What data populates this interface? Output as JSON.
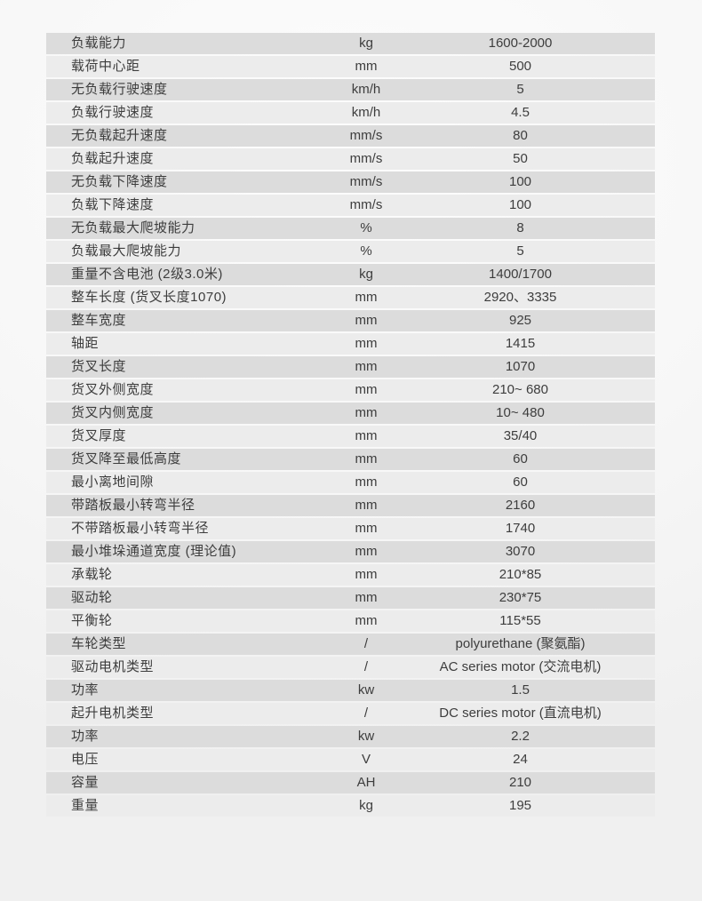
{
  "colors": {
    "row_odd": "#dcdcdc",
    "row_even": "#ececec",
    "text": "#3d3d3d",
    "page_background": "#f5f5f5"
  },
  "table": {
    "rows": [
      {
        "label": "负载能力",
        "unit": "kg",
        "value": "1600-2000"
      },
      {
        "label": "载荷中心距",
        "unit": "mm",
        "value": "500"
      },
      {
        "label": "无负载行驶速度",
        "unit": "km/h",
        "value": "5"
      },
      {
        "label": "负载行驶速度",
        "unit": "km/h",
        "value": "4.5"
      },
      {
        "label": "无负载起升速度",
        "unit": "mm/s",
        "value": "80"
      },
      {
        "label": "负载起升速度",
        "unit": "mm/s",
        "value": "50"
      },
      {
        "label": "无负载下降速度",
        "unit": "mm/s",
        "value": "100"
      },
      {
        "label": "负载下降速度",
        "unit": "mm/s",
        "value": "100"
      },
      {
        "label": "无负载最大爬坡能力",
        "unit": "%",
        "value": "8"
      },
      {
        "label": "负载最大爬坡能力",
        "unit": "%",
        "value": "5"
      },
      {
        "label": "重量不含电池 (2级3.0米)",
        "unit": "kg",
        "value": "1400/1700"
      },
      {
        "label": "整车长度 (货叉长度1070)",
        "unit": "mm",
        "value": "2920、3335"
      },
      {
        "label": "整车宽度",
        "unit": "mm",
        "value": "925"
      },
      {
        "label": "轴距",
        "unit": "mm",
        "value": "1415"
      },
      {
        "label": "货叉长度",
        "unit": "mm",
        "value": "1070"
      },
      {
        "label": "货叉外侧宽度",
        "unit": "mm",
        "value": "210~ 680"
      },
      {
        "label": "货叉内侧宽度",
        "unit": "mm",
        "value": "10~ 480"
      },
      {
        "label": "货叉厚度",
        "unit": "mm",
        "value": "35/40"
      },
      {
        "label": "货叉降至最低高度",
        "unit": "mm",
        "value": "60"
      },
      {
        "label": "最小离地间隙",
        "unit": "mm",
        "value": "60"
      },
      {
        "label": "带踏板最小转弯半径",
        "unit": "mm",
        "value": "2160"
      },
      {
        "label": "不带踏板最小转弯半径",
        "unit": "mm",
        "value": "1740"
      },
      {
        "label": "最小堆垛通道宽度 (理论值)",
        "unit": "mm",
        "value": "3070"
      },
      {
        "label": "承载轮",
        "unit": "mm",
        "value": "210*85"
      },
      {
        "label": "驱动轮",
        "unit": "mm",
        "value": "230*75"
      },
      {
        "label": "平衡轮",
        "unit": "mm",
        "value": "115*55"
      },
      {
        "label": "车轮类型",
        "unit": "/",
        "value": "polyurethane (聚氨酯)"
      },
      {
        "label": "驱动电机类型",
        "unit": "/",
        "value": "AC series motor (交流电机)"
      },
      {
        "label": "功率",
        "unit": "kw",
        "value": "1.5"
      },
      {
        "label": "起升电机类型",
        "unit": "/",
        "value": "DC series motor (直流电机)"
      },
      {
        "label": "功率",
        "unit": "kw",
        "value": "2.2"
      },
      {
        "label": "电压",
        "unit": "V",
        "value": "24"
      },
      {
        "label": "容量",
        "unit": "AH",
        "value": "210"
      },
      {
        "label": "重量",
        "unit": "kg",
        "value": "195"
      }
    ]
  }
}
